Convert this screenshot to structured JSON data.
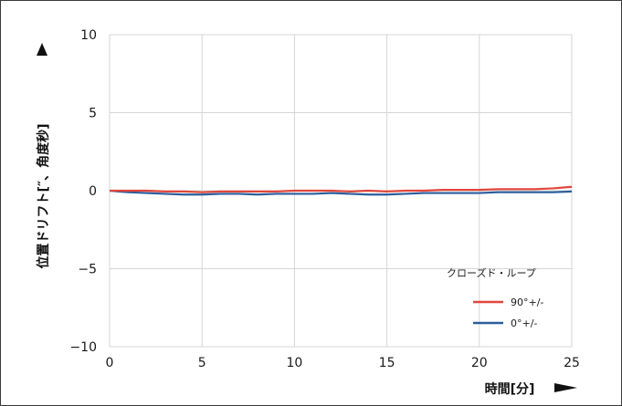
{
  "chart_data": {
    "type": "line",
    "xlabel": "時間[分]",
    "ylabel": "位置ドリフト[″、角度秒]",
    "xlim": [
      0,
      25
    ],
    "ylim": [
      -10,
      10
    ],
    "x_ticks": [
      0,
      5,
      10,
      15,
      20,
      25
    ],
    "y_ticks": [
      -10,
      -5,
      0,
      5,
      10
    ],
    "x_tick_labels": [
      "0",
      "5",
      "10",
      "15",
      "20",
      "25"
    ],
    "y_tick_labels": [
      "−10",
      "−5",
      "0",
      "5",
      "10"
    ],
    "grid": true,
    "legend_title": "クローズド・ループ",
    "legend_position": "bottom-right",
    "x": [
      0,
      1,
      2,
      3,
      4,
      5,
      6,
      7,
      8,
      9,
      10,
      11,
      12,
      13,
      14,
      15,
      16,
      17,
      18,
      19,
      20,
      21,
      22,
      23,
      24,
      25
    ],
    "series": [
      {
        "name": "90°+/-",
        "color": "#e0463b",
        "values": [
          0.0,
          0.0,
          0.0,
          -0.05,
          -0.05,
          -0.1,
          -0.05,
          -0.05,
          -0.05,
          -0.05,
          0.0,
          0.0,
          0.0,
          -0.05,
          0.0,
          -0.05,
          0.0,
          0.0,
          0.05,
          0.05,
          0.05,
          0.1,
          0.1,
          0.1,
          0.15,
          0.25
        ]
      },
      {
        "name": "0°+/-",
        "color": "#2a5e9c",
        "values": [
          0.0,
          -0.1,
          -0.15,
          -0.2,
          -0.25,
          -0.25,
          -0.2,
          -0.2,
          -0.25,
          -0.2,
          -0.2,
          -0.2,
          -0.15,
          -0.2,
          -0.25,
          -0.25,
          -0.2,
          -0.15,
          -0.15,
          -0.15,
          -0.15,
          -0.1,
          -0.1,
          -0.1,
          -0.1,
          -0.05
        ]
      }
    ]
  }
}
